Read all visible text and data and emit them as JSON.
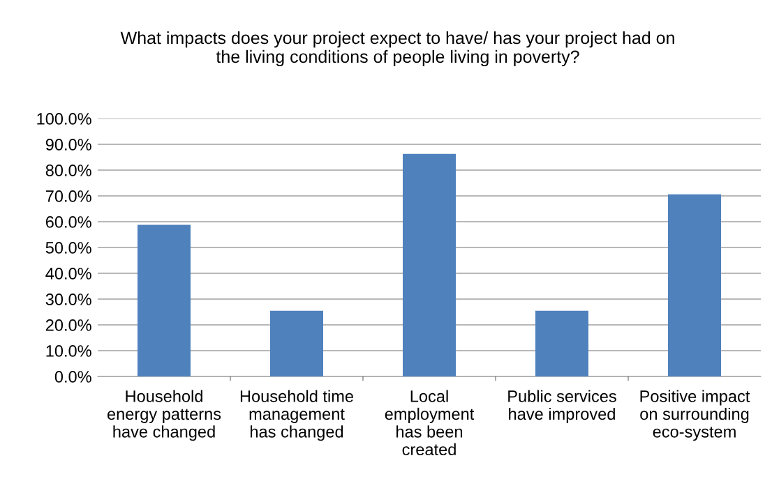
{
  "chart_data": {
    "type": "bar",
    "title": "What impacts does your project expect to have/ has your project had on\nthe living conditions of people living in poverty?",
    "categories": [
      "Household\nenergy patterns\nhave changed",
      "Household time\nmanagement\nhas changed",
      "Local\nemployment\nhas been\ncreated",
      "Public services\nhave improved",
      "Positive impact\non surrounding\neco-system"
    ],
    "values": [
      58.8,
      25.5,
      86.3,
      25.5,
      70.6
    ],
    "color": "#4f81bd",
    "ylim": [
      0,
      100
    ],
    "yticks": [
      {
        "value": 0,
        "label": "0.0%"
      },
      {
        "value": 10,
        "label": "10.0%"
      },
      {
        "value": 20,
        "label": "20.0%"
      },
      {
        "value": 30,
        "label": "30.0%"
      },
      {
        "value": 40,
        "label": "40.0%"
      },
      {
        "value": 50,
        "label": "50.0%"
      },
      {
        "value": 60,
        "label": "60.0%"
      },
      {
        "value": 70,
        "label": "70.0%"
      },
      {
        "value": 80,
        "label": "80.0%"
      },
      {
        "value": 90,
        "label": "90.0%"
      },
      {
        "value": 100,
        "label": "100.0%"
      }
    ],
    "grid": "y"
  }
}
